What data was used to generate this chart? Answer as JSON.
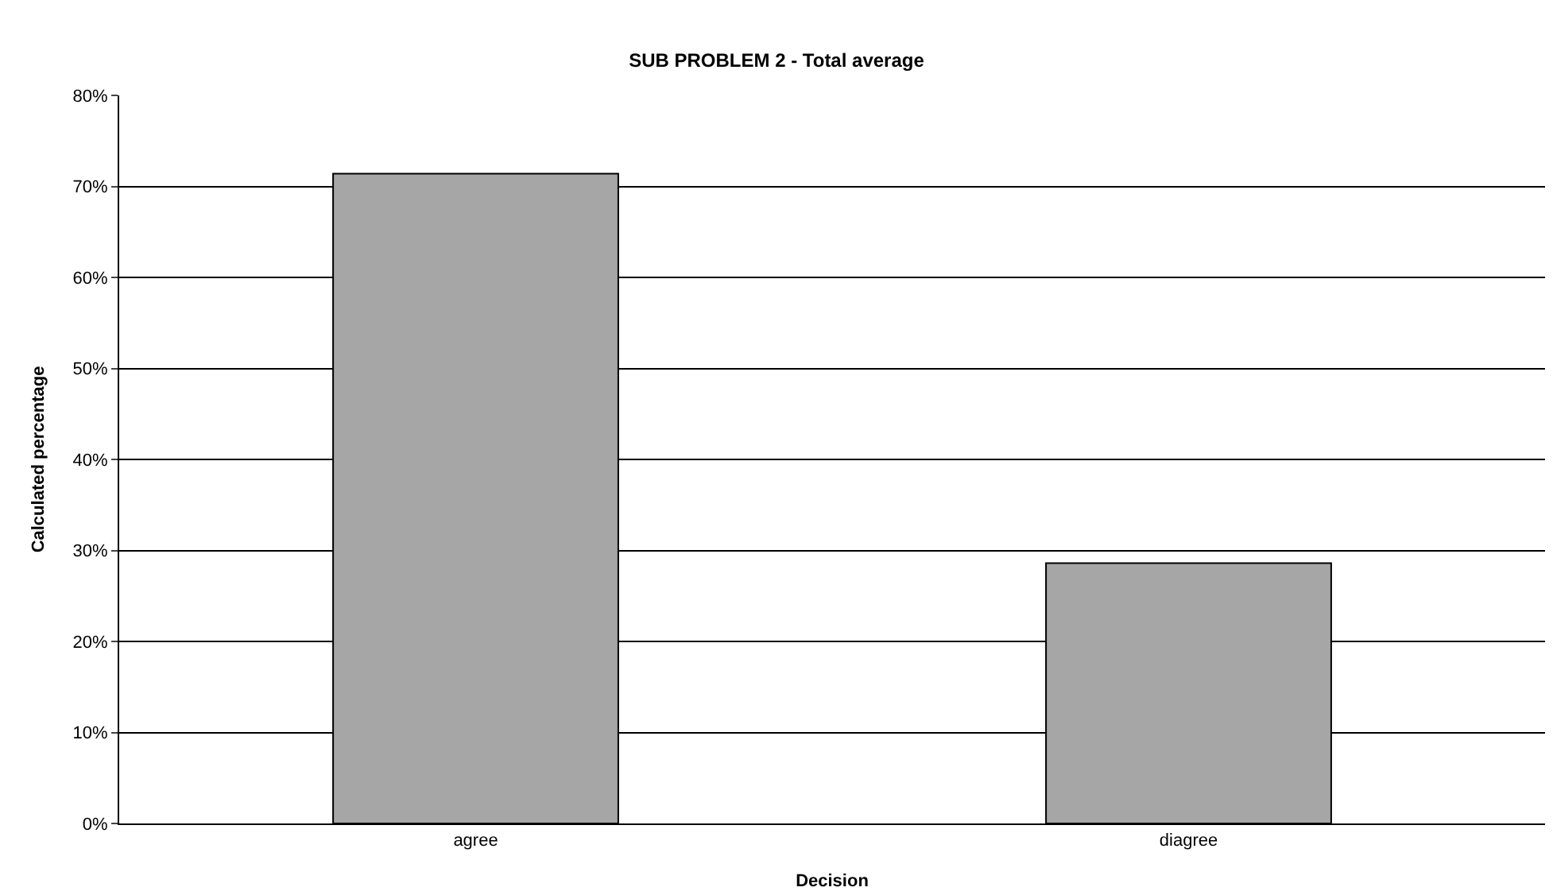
{
  "chart_data": {
    "type": "bar",
    "title": "SUB PROBLEM 2 - Total average",
    "xlabel": "Decision",
    "ylabel": "Calculated percentage",
    "categories": [
      "agree",
      "diagree"
    ],
    "values": [
      71.4,
      28.6
    ],
    "color": "#a6a6a6",
    "ylim": [
      0,
      80
    ],
    "yticks": [
      {
        "value": 0,
        "label": "0%"
      },
      {
        "value": 10,
        "label": "10%"
      },
      {
        "value": 20,
        "label": "20%"
      },
      {
        "value": 30,
        "label": "30%"
      },
      {
        "value": 40,
        "label": "40%"
      },
      {
        "value": 50,
        "label": "50%"
      },
      {
        "value": 60,
        "label": "60%"
      },
      {
        "value": 70,
        "label": "70%"
      },
      {
        "value": 80,
        "label": "80%"
      }
    ],
    "grid": "y",
    "legend": false
  }
}
